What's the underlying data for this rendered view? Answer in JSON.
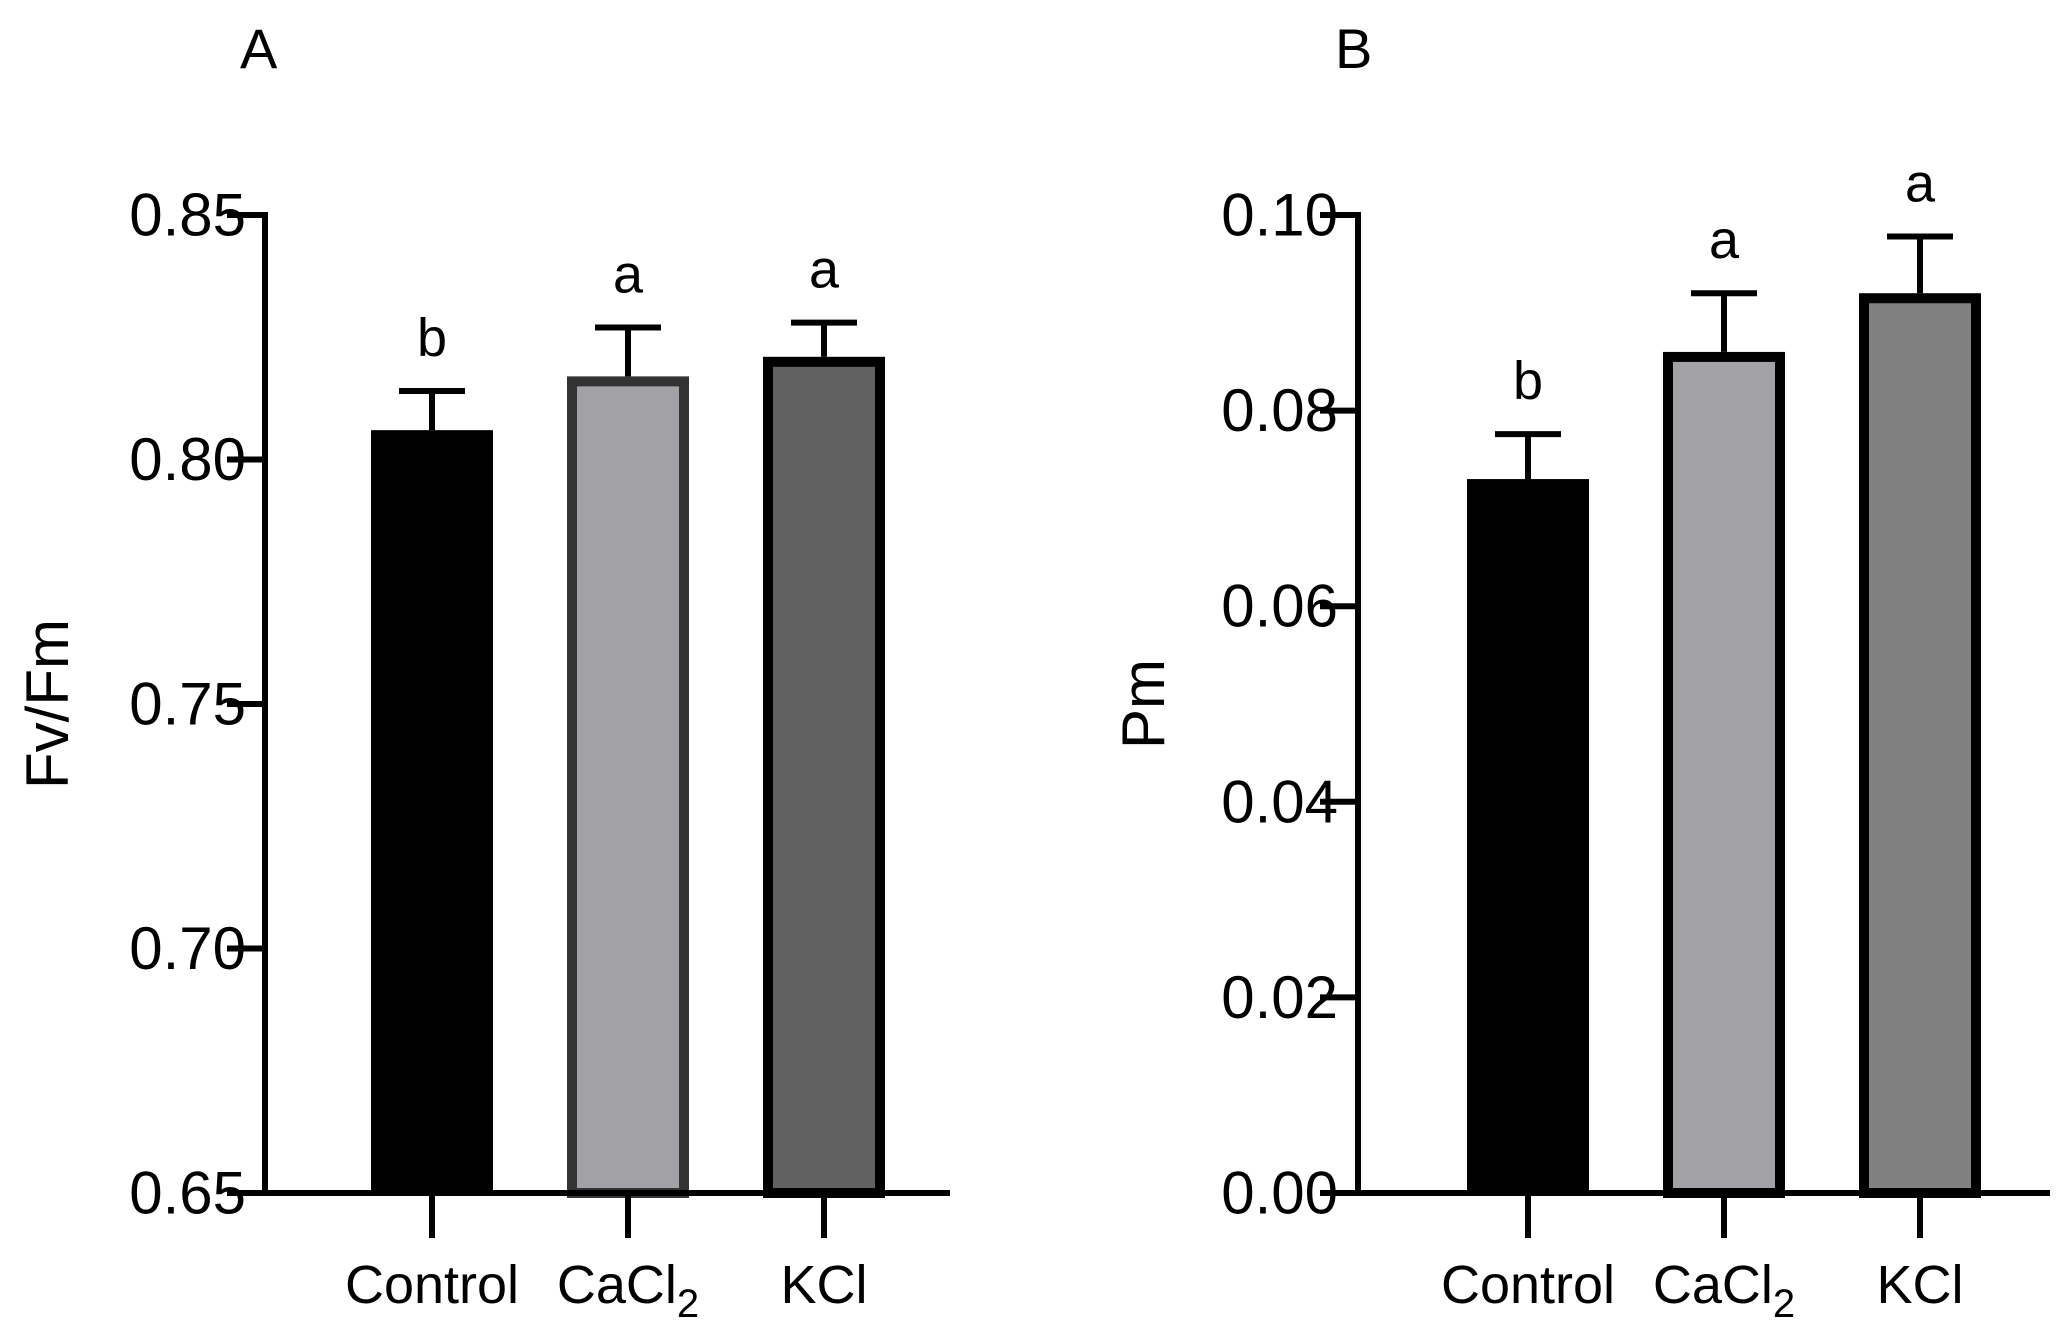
{
  "chart_data": [
    {
      "type": "bar",
      "panel_label": "A",
      "title": "",
      "xlabel": "",
      "ylabel": "Fv/Fm",
      "ylim": [
        0.65,
        0.85
      ],
      "yticks": [
        0.65,
        0.7,
        0.75,
        0.8,
        0.85
      ],
      "ytick_labels": [
        "0.65",
        "0.70",
        "0.75",
        "0.80",
        "0.85"
      ],
      "categories": [
        "Control",
        "CaCl2",
        "KCl"
      ],
      "category_labels": [
        {
          "base": "Control",
          "subscript": ""
        },
        {
          "base": "CaCl",
          "subscript": "2"
        },
        {
          "base": "KCl",
          "subscript": ""
        }
      ],
      "values": [
        0.806,
        0.817,
        0.821
      ],
      "errors": [
        0.008,
        0.01,
        0.007
      ],
      "significance": [
        "b",
        "a",
        "a"
      ],
      "fill_colors": [
        "#000000",
        "#a1a1a6",
        "#606060"
      ],
      "grid": false
    },
    {
      "type": "bar",
      "panel_label": "B",
      "title": "",
      "xlabel": "",
      "ylabel": "Pm",
      "ylim": [
        0.0,
        0.1
      ],
      "yticks": [
        0.0,
        0.02,
        0.04,
        0.06,
        0.08,
        0.1
      ],
      "ytick_labels": [
        "0.00",
        "0.02",
        "0.04",
        "0.06",
        "0.08",
        "0.10"
      ],
      "categories": [
        "Control",
        "CaCl2",
        "KCl"
      ],
      "category_labels": [
        {
          "base": "Control",
          "subscript": ""
        },
        {
          "base": "CaCl",
          "subscript": "2"
        },
        {
          "base": "KCl",
          "subscript": ""
        }
      ],
      "values": [
        0.073,
        0.086,
        0.092
      ],
      "errors": [
        0.0046,
        0.006,
        0.0058
      ],
      "significance": [
        "b",
        "a",
        "a"
      ],
      "fill_colors": [
        "#000000",
        "#a1a1a6",
        "#808080"
      ],
      "grid": false
    }
  ]
}
